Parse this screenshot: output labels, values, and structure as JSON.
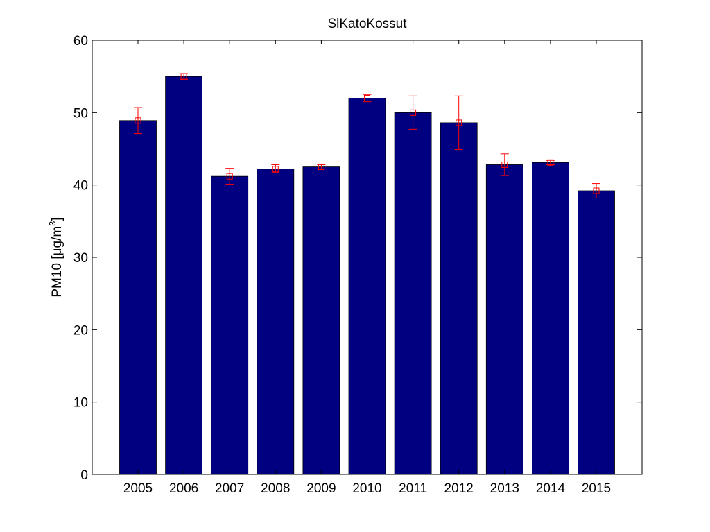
{
  "chart_data": {
    "type": "bar",
    "title": "SlKatoKossut",
    "xlabel": "",
    "ylabel": "PM10 [μg/m3]",
    "ylabel_parts": {
      "main": "PM10 [",
      "mu": "μ",
      "unit": "g/m",
      "sup": "3",
      "close": "]"
    },
    "categories": [
      "2005",
      "2006",
      "2007",
      "2008",
      "2009",
      "2010",
      "2011",
      "2012",
      "2013",
      "2014",
      "2015"
    ],
    "values": [
      48.9,
      55.0,
      41.2,
      42.2,
      42.5,
      52.0,
      50.0,
      48.6,
      42.8,
      43.1,
      39.2
    ],
    "error_center": [
      48.9,
      55.0,
      41.2,
      42.2,
      42.5,
      52.0,
      50.0,
      48.6,
      42.8,
      43.1,
      39.2
    ],
    "error_low": [
      47.1,
      54.6,
      40.1,
      41.7,
      42.2,
      51.5,
      47.7,
      44.9,
      41.3,
      42.8,
      38.2
    ],
    "error_high": [
      50.7,
      55.4,
      42.3,
      42.8,
      42.8,
      52.5,
      52.3,
      52.3,
      44.3,
      43.4,
      40.2
    ],
    "ylim": [
      0,
      60
    ],
    "yticks": [
      "0",
      "10",
      "20",
      "30",
      "40",
      "50",
      "60"
    ],
    "grid": false,
    "legend": "none",
    "colors": {
      "bar": "#000080",
      "error": "#ff0000",
      "axes": "#000000"
    }
  }
}
